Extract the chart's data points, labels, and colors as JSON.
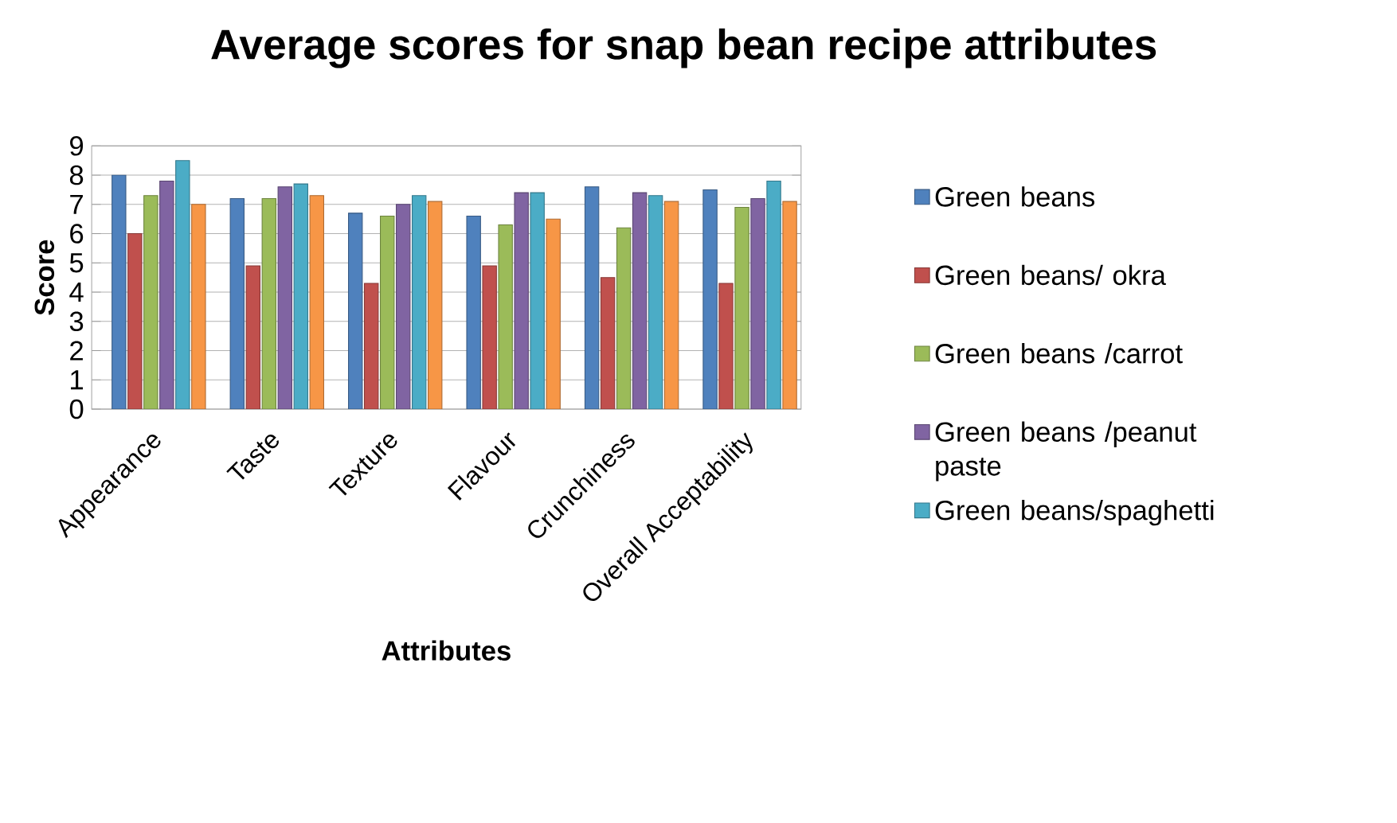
{
  "chart_data": {
    "type": "bar",
    "title": "Average scores for snap bean recipe attributes",
    "xlabel": "Attributes",
    "ylabel": "Score",
    "categories": [
      "Appearance",
      "Taste",
      "Texture",
      "Flavour",
      "Crunchiness",
      "Overall Acceptability"
    ],
    "series": [
      {
        "name": "Green beans",
        "color": "#4f81bd",
        "values": [
          8.0,
          7.2,
          6.7,
          6.6,
          7.6,
          7.5
        ]
      },
      {
        "name": "Green beans/ okra",
        "color": "#c0504d",
        "values": [
          6.0,
          4.9,
          4.3,
          4.9,
          4.5,
          4.3
        ]
      },
      {
        "name": "Green beans /carrot",
        "color": "#9bbb59",
        "values": [
          7.3,
          7.2,
          6.6,
          6.3,
          6.2,
          6.9
        ]
      },
      {
        "name": "Green beans /peanut paste",
        "color": "#8064a2",
        "values": [
          7.8,
          7.6,
          7.0,
          7.4,
          7.4,
          7.2
        ]
      },
      {
        "name": "Green beans/spaghetti",
        "color": "#4bacc6",
        "values": [
          8.5,
          7.7,
          7.3,
          7.4,
          7.3,
          7.8
        ]
      },
      {
        "color": "#f79646",
        "values": [
          7.0,
          7.3,
          7.1,
          6.5,
          7.1,
          7.1
        ]
      }
    ],
    "ylim": [
      0,
      9
    ],
    "yticks": [
      0,
      1,
      2,
      3,
      4,
      5,
      6,
      7,
      8,
      9
    ],
    "grid": "y",
    "legend": "right"
  }
}
